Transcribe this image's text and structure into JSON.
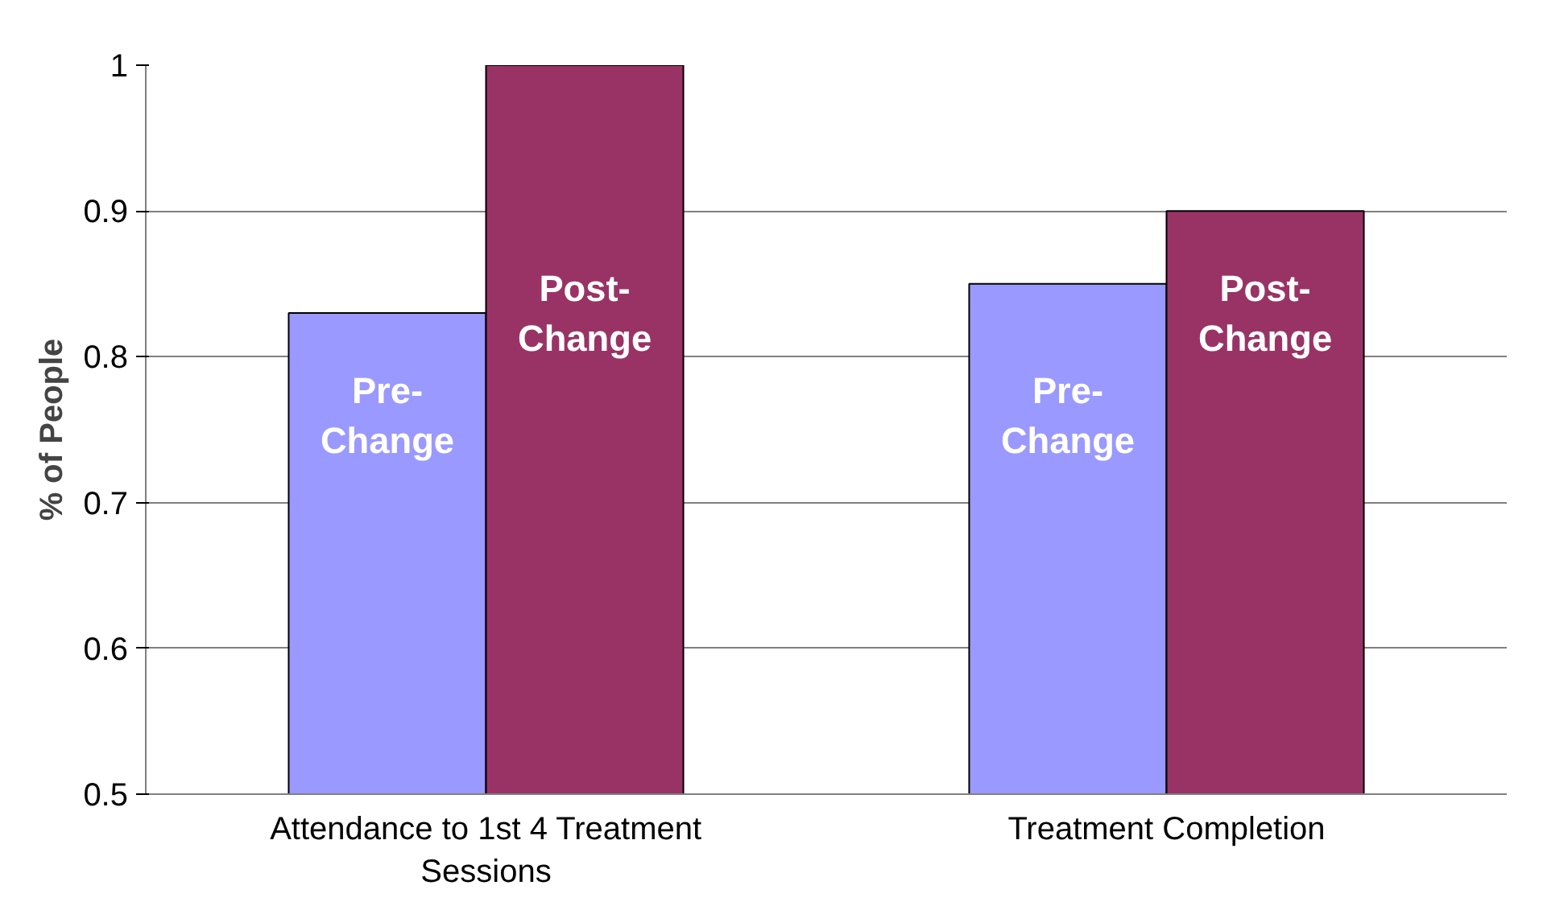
{
  "chart_data": {
    "type": "bar",
    "ylabel": "% of People",
    "categories": [
      "Attendance to 1st 4 Treatment Sessions",
      "Treatment Completion"
    ],
    "series": [
      {
        "name": "Pre-Change",
        "color": "#9999ff",
        "values": [
          0.83,
          0.85
        ]
      },
      {
        "name": "Post-Change",
        "color": "#993366",
        "values": [
          1.0,
          0.9
        ]
      }
    ],
    "ylim": [
      0.5,
      1
    ],
    "yticks": [
      0.5,
      0.6,
      0.7,
      0.8,
      0.9,
      1
    ],
    "grid": "y",
    "legend": false
  }
}
